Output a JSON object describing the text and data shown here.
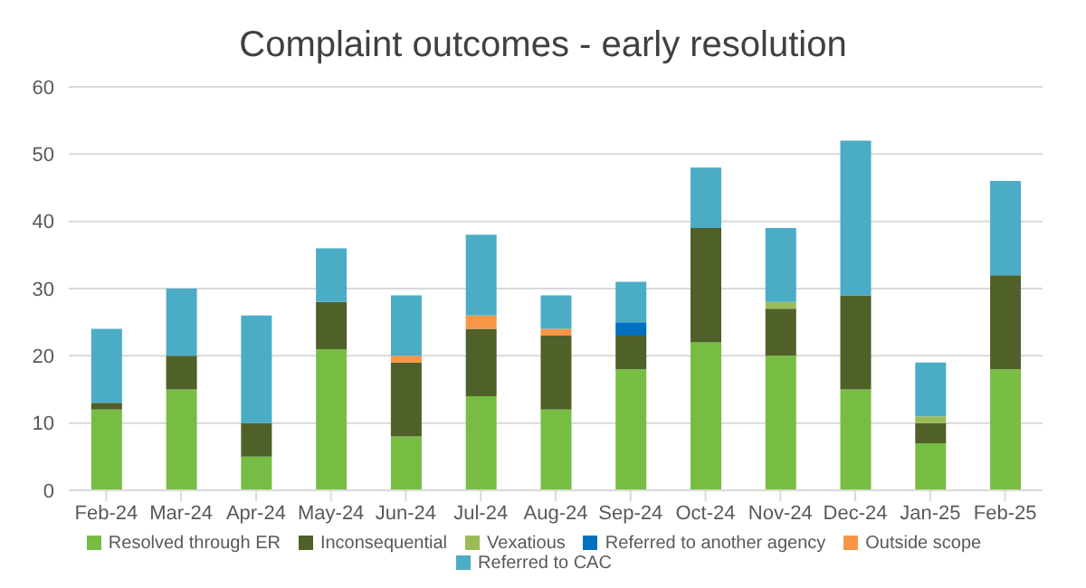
{
  "chart_data": {
    "type": "bar",
    "title": "Complaint outcomes - early resolution",
    "stacked": true,
    "categories": [
      "Feb-24",
      "Mar-24",
      "Apr-24",
      "May-24",
      "Jun-24",
      "Jul-24",
      "Aug-24",
      "Sep-24",
      "Oct-24",
      "Nov-24",
      "Dec-24",
      "Jan-25",
      "Feb-25"
    ],
    "series": [
      {
        "name": "Resolved through ER",
        "color": "#77bd44",
        "values": [
          12,
          15,
          5,
          21,
          8,
          14,
          12,
          18,
          22,
          20,
          15,
          7,
          18
        ]
      },
      {
        "name": "Inconsequential",
        "color": "#4f6028",
        "values": [
          1,
          5,
          5,
          7,
          11,
          10,
          11,
          5,
          17,
          7,
          14,
          3,
          14
        ]
      },
      {
        "name": "Vexatious",
        "color": "#9bbb59",
        "values": [
          0,
          0,
          0,
          0,
          0,
          0,
          0,
          0,
          0,
          1,
          0,
          1,
          0
        ]
      },
      {
        "name": "Referred to another agency",
        "color": "#0070c0",
        "values": [
          0,
          0,
          0,
          0,
          0,
          0,
          0,
          2,
          0,
          0,
          0,
          0,
          0
        ]
      },
      {
        "name": "Outside scope",
        "color": "#f79646",
        "values": [
          0,
          0,
          0,
          0,
          1,
          2,
          1,
          0,
          0,
          0,
          0,
          0,
          0
        ]
      },
      {
        "name": "Referred to CAC",
        "color": "#4bacc6",
        "values": [
          11,
          10,
          16,
          8,
          9,
          12,
          5,
          6,
          9,
          11,
          23,
          8,
          14
        ]
      }
    ],
    "ylim": [
      0,
      60
    ],
    "yticks": [
      0,
      10,
      20,
      30,
      40,
      50,
      60
    ],
    "grid": "y",
    "legend": "bottom"
  }
}
